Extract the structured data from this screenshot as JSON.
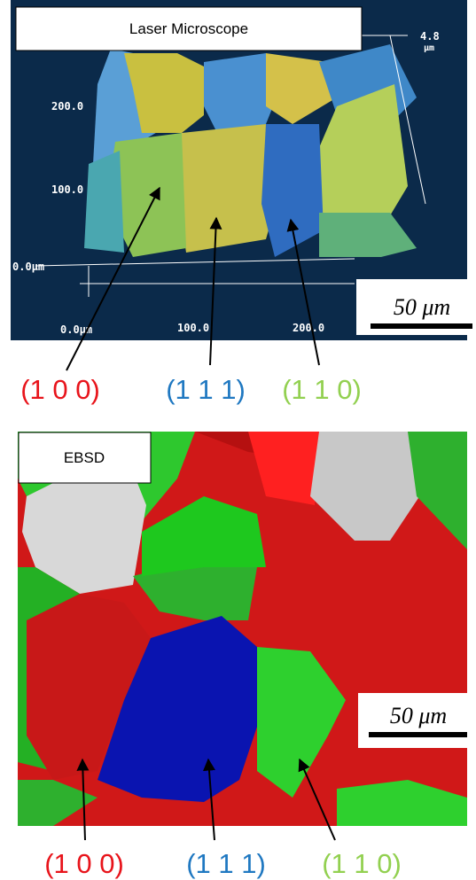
{
  "top_panel": {
    "title": "Laser Microscope",
    "y_axis_labels": [
      "200.0",
      "100.0",
      "0.0μm"
    ],
    "x_axis_labels": [
      "0.0μm",
      "100.0",
      "200.0"
    ],
    "z_axis_label": {
      "value": "4.8",
      "unit": "μm"
    },
    "scale_bar": "50 μm",
    "annotations": [
      {
        "text": "(1 0 0)",
        "color": "#e8141b"
      },
      {
        "text": "(1 1 1)",
        "color": "#1f78c1"
      },
      {
        "text": "(1 1 0)",
        "color": "#92d050"
      }
    ]
  },
  "bottom_panel": {
    "title": "EBSD",
    "scale_bar": "50 μm",
    "annotations": [
      {
        "text": "(1 0 0)",
        "color": "#e8141b"
      },
      {
        "text": "(1 1 1)",
        "color": "#1f78c1"
      },
      {
        "text": "(1 1 0)",
        "color": "#92d050"
      }
    ]
  }
}
